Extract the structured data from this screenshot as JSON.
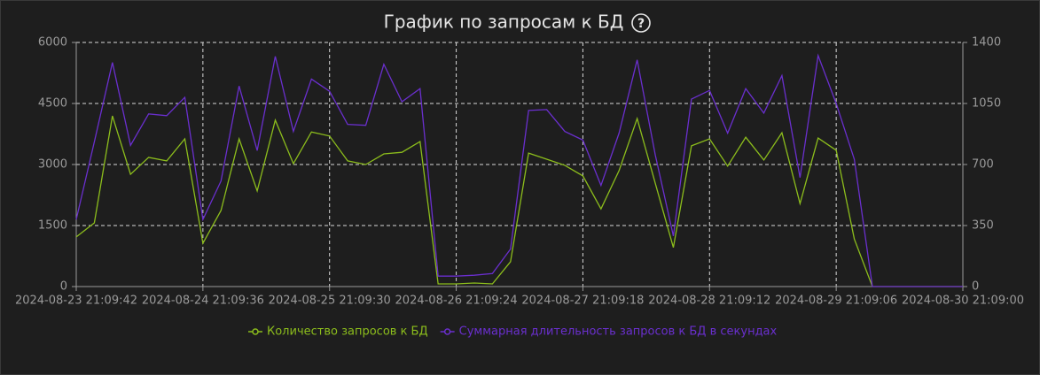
{
  "chart_data": {
    "type": "line",
    "title": "График по запросам к БД",
    "categories": [
      "2024-08-23 21:09:42",
      null,
      null,
      null,
      null,
      null,
      null,
      "2024-08-24 21:09:36",
      null,
      null,
      null,
      null,
      null,
      null,
      "2024-08-25 21:09:30",
      null,
      null,
      null,
      null,
      null,
      null,
      "2024-08-26 21:09:24",
      null,
      null,
      null,
      null,
      null,
      null,
      "2024-08-27 21:09:18",
      null,
      null,
      null,
      null,
      null,
      null,
      "2024-08-28 21:09:12",
      null,
      null,
      null,
      null,
      null,
      null,
      "2024-08-29 21:09:06",
      null,
      null,
      null,
      null,
      null,
      null,
      "2024-08-30 21:09:00"
    ],
    "series": [
      {
        "name": "Количество запросов к БД",
        "color": "#8cbd1c",
        "values": [
          1220,
          1565,
          4195,
          2760,
          3175,
          3090,
          3630,
          1065,
          1870,
          3630,
          2350,
          4090,
          3020,
          3800,
          3700,
          3090,
          3000,
          3260,
          3300,
          3565,
          65,
          65,
          87,
          65,
          610,
          3280,
          3130,
          2980,
          2720,
          1910,
          2850,
          4130,
          2540,
          960,
          3460,
          3630,
          2960,
          3670,
          3110,
          3780,
          2040,
          3650,
          3350,
          1170,
          0,
          0,
          0,
          0,
          0,
          0
        ]
      },
      {
        "name": "Суммарная длительность запросов к БД в секундах",
        "color": "#6a2fce",
        "axis": "y2",
        "values": [
          385,
          830,
          1285,
          810,
          990,
          980,
          1085,
          385,
          605,
          1150,
          780,
          1320,
          890,
          1190,
          1120,
          930,
          925,
          1275,
          1060,
          1135,
          60,
          60,
          65,
          75,
          215,
          1010,
          1015,
          890,
          840,
          580,
          880,
          1300,
          755,
          290,
          1075,
          1125,
          880,
          1135,
          995,
          1210,
          625,
          1325,
          1050,
          730,
          0,
          0,
          0,
          0,
          0,
          0
        ]
      }
    ],
    "ylim": [
      0,
      6000
    ],
    "yticks": [
      0,
      1500,
      3000,
      4500,
      6000
    ],
    "y2lim": [
      0,
      1400
    ],
    "y2ticks": [
      0,
      350,
      700,
      1050,
      1400
    ],
    "grid": true
  }
}
